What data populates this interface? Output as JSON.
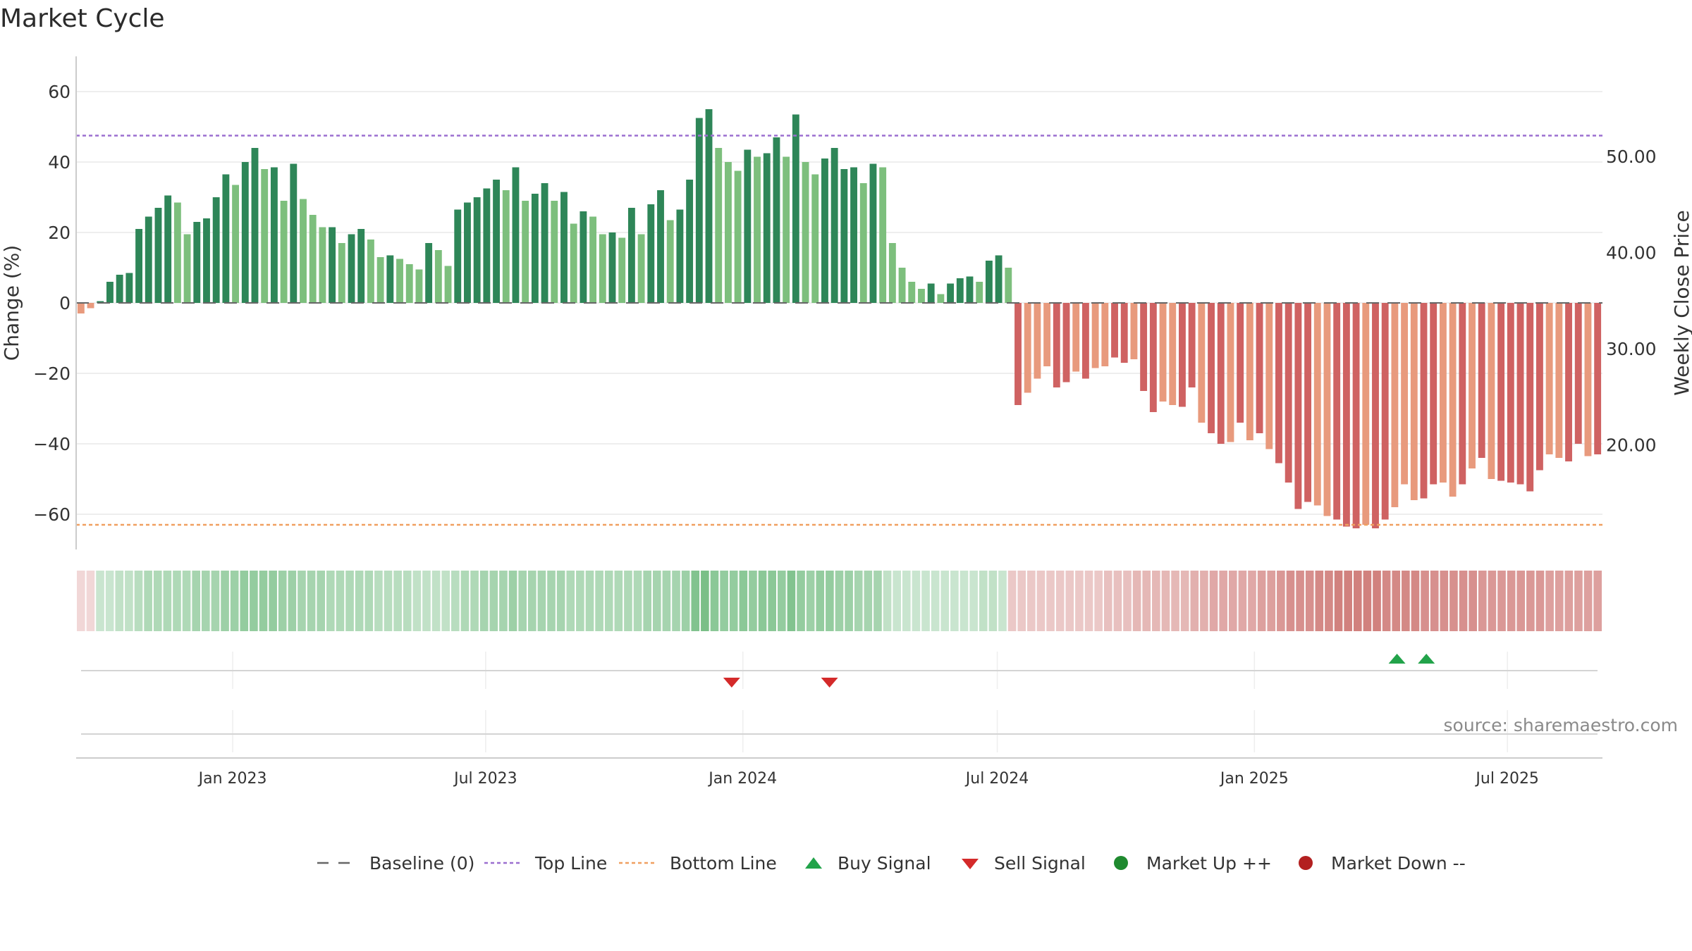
{
  "title": "Market Cycle",
  "source": "source: sharemaestro.com",
  "colors": {
    "up_dark": "#2e8658",
    "up_light": "#7dbf7d",
    "down_dark": "#cf6262",
    "down_light": "#e89a7d",
    "top_line": "#9b6fd0",
    "bottom_line": "#f0a060",
    "buy": "#22a34a",
    "sell": "#d42a2a",
    "market_up": "#1f8a2f",
    "market_down": "#b32020",
    "baseline": "#666666"
  },
  "legend": [
    {
      "key": "baseline",
      "label": "Baseline (0)",
      "symbol": "dash",
      "color": "#666666"
    },
    {
      "key": "top",
      "label": "Top Line",
      "symbol": "dot",
      "color": "#9b6fd0"
    },
    {
      "key": "bottom",
      "label": "Bottom Line",
      "symbol": "dot",
      "color": "#f0a060"
    },
    {
      "key": "buy",
      "label": "Buy Signal",
      "symbol": "triangle-up",
      "color": "#22a34a"
    },
    {
      "key": "sell",
      "label": "Sell Signal",
      "symbol": "triangle-down",
      "color": "#d42a2a"
    },
    {
      "key": "mup",
      "label": "Market Up ++",
      "symbol": "circle",
      "color": "#1f8a2f"
    },
    {
      "key": "mdown",
      "label": "Market Down --",
      "symbol": "circle",
      "color": "#b32020"
    }
  ],
  "chart_data": {
    "type": "bar",
    "ylabel": "Change (%)",
    "y2label": "Weekly Close Price",
    "ylim": [
      -70,
      70
    ],
    "y_ticks": [
      60,
      40,
      20,
      0,
      -20,
      -40,
      -60
    ],
    "y_tick_labels": [
      "60",
      "40",
      "20",
      "0",
      "−20",
      "−40",
      "−60"
    ],
    "y2lim": [
      9.1,
      60.4
    ],
    "y2_ticks": [
      50,
      40,
      30,
      20
    ],
    "y2_tick_labels": [
      "50.00",
      "40.00",
      "30.00",
      "20.00"
    ],
    "top_line": 47.5,
    "bottom_line": -63,
    "x_start": "2022-09-11",
    "x_end": "2025-09-07",
    "x_ticks": [
      "2023-01-01",
      "2023-07-01",
      "2024-01-01",
      "2024-07-01",
      "2025-01-01",
      "2025-07-01"
    ],
    "x_tick_labels": [
      "Jan 2023",
      "Jul 2023",
      "Jan 2024",
      "Jul 2024",
      "Jan 2025",
      "Jul 2025"
    ],
    "values": [
      -3,
      -1.5,
      0.5,
      6,
      8,
      8.5,
      21,
      24.5,
      27,
      30.5,
      28.5,
      19.5,
      23,
      24,
      30,
      36.5,
      33.5,
      40,
      44,
      38,
      38.5,
      29,
      39.5,
      29.5,
      25,
      21.5,
      21.5,
      17,
      19.5,
      21,
      18,
      13,
      13.5,
      12.5,
      11,
      9.5,
      17,
      15,
      10.5,
      26.5,
      28.5,
      30,
      32.5,
      35,
      32,
      38.5,
      29,
      31,
      34,
      29,
      31.5,
      22.5,
      26,
      24.5,
      19.5,
      20,
      18.5,
      27,
      19.5,
      28,
      32,
      23.5,
      26.5,
      35,
      52.5,
      55,
      44,
      40,
      37.5,
      43.5,
      41.5,
      42.5,
      47,
      41.5,
      53.5,
      40,
      36.5,
      41,
      44,
      38,
      38.5,
      34,
      39.5,
      38.5,
      17,
      10,
      6,
      4,
      5.5,
      2.5,
      5.5,
      7,
      7.5,
      6,
      12,
      13.5,
      10,
      -29,
      -25.5,
      -21.5,
      -18,
      -24,
      -22.5,
      -19.5,
      -21.5,
      -18.5,
      -18,
      -15.5,
      -17,
      -16,
      -25,
      -31,
      -28,
      -29,
      -29.5,
      -24,
      -34,
      -37,
      -40,
      -39.5,
      -34,
      -39,
      -37,
      -41.5,
      -45.5,
      -51,
      -58.5,
      -56.5,
      -57.5,
      -60.5,
      -61.5,
      -63.5,
      -64,
      -63,
      -64,
      -61.5,
      -58,
      -51.5,
      -56,
      -55.5,
      -51.5,
      -51,
      -55,
      -51.5,
      -47,
      -44,
      -50,
      -50.5,
      -51,
      -51.5,
      -53.5,
      -47.5,
      -43,
      -44,
      -45,
      -40,
      -43.5,
      -43
    ],
    "shade": [
      "l",
      "l",
      "d",
      "d",
      "d",
      "d",
      "d",
      "d",
      "d",
      "d",
      "l",
      "l",
      "d",
      "d",
      "d",
      "d",
      "l",
      "d",
      "d",
      "l",
      "d",
      "l",
      "d",
      "l",
      "l",
      "l",
      "d",
      "l",
      "d",
      "d",
      "l",
      "l",
      "d",
      "l",
      "l",
      "l",
      "d",
      "l",
      "l",
      "d",
      "d",
      "d",
      "d",
      "d",
      "l",
      "d",
      "l",
      "d",
      "d",
      "l",
      "d",
      "l",
      "d",
      "l",
      "l",
      "d",
      "l",
      "d",
      "l",
      "d",
      "d",
      "l",
      "d",
      "d",
      "d",
      "d",
      "l",
      "l",
      "l",
      "d",
      "l",
      "d",
      "d",
      "l",
      "d",
      "l",
      "l",
      "d",
      "d",
      "d",
      "d",
      "l",
      "d",
      "l",
      "l",
      "l",
      "l",
      "l",
      "d",
      "l",
      "d",
      "d",
      "d",
      "l",
      "d",
      "d",
      "l",
      "d",
      "l",
      "l",
      "l",
      "d",
      "d",
      "l",
      "d",
      "l",
      "l",
      "d",
      "d",
      "l",
      "d",
      "d",
      "l",
      "l",
      "d",
      "d",
      "l",
      "d",
      "d",
      "l",
      "d",
      "l",
      "d",
      "l",
      "d",
      "d",
      "d",
      "d",
      "l",
      "l",
      "d",
      "d",
      "d",
      "l",
      "d",
      "d",
      "l",
      "l",
      "l",
      "d",
      "d",
      "l",
      "l",
      "d",
      "l",
      "d",
      "l",
      "d",
      "d",
      "d",
      "d",
      "d",
      "l",
      "l",
      "d",
      "d",
      "l",
      "d",
      "l"
    ],
    "heat": [
      0.25,
      0.25,
      0.3,
      0.3,
      0.35,
      0.35,
      0.4,
      0.45,
      0.45,
      0.45,
      0.45,
      0.45,
      0.5,
      0.5,
      0.5,
      0.55,
      0.55,
      0.6,
      0.6,
      0.6,
      0.6,
      0.55,
      0.55,
      0.5,
      0.5,
      0.5,
      0.45,
      0.45,
      0.45,
      0.45,
      0.45,
      0.4,
      0.4,
      0.4,
      0.4,
      0.35,
      0.35,
      0.35,
      0.35,
      0.4,
      0.45,
      0.45,
      0.5,
      0.5,
      0.5,
      0.55,
      0.5,
      0.5,
      0.5,
      0.5,
      0.5,
      0.45,
      0.45,
      0.45,
      0.45,
      0.45,
      0.45,
      0.45,
      0.45,
      0.5,
      0.5,
      0.5,
      0.5,
      0.55,
      0.7,
      0.75,
      0.65,
      0.6,
      0.6,
      0.65,
      0.6,
      0.65,
      0.65,
      0.6,
      0.7,
      0.6,
      0.55,
      0.6,
      0.6,
      0.55,
      0.55,
      0.5,
      0.5,
      0.5,
      0.35,
      0.3,
      0.3,
      0.3,
      0.3,
      0.3,
      0.3,
      0.3,
      0.3,
      0.3,
      0.35,
      0.35,
      0.3,
      0.35,
      0.35,
      0.35,
      0.35,
      0.35,
      0.35,
      0.35,
      0.35,
      0.35,
      0.35,
      0.4,
      0.4,
      0.4,
      0.45,
      0.45,
      0.45,
      0.45,
      0.45,
      0.45,
      0.5,
      0.5,
      0.55,
      0.55,
      0.55,
      0.55,
      0.55,
      0.6,
      0.6,
      0.65,
      0.7,
      0.7,
      0.7,
      0.75,
      0.75,
      0.8,
      0.8,
      0.8,
      0.8,
      0.8,
      0.75,
      0.75,
      0.75,
      0.75,
      0.7,
      0.7,
      0.7,
      0.7,
      0.7,
      0.7,
      0.65,
      0.65,
      0.65,
      0.65,
      0.65,
      0.65,
      0.65,
      0.6,
      0.6,
      0.6,
      0.6,
      0.6,
      0.6
    ],
    "buy_signals": [
      "2025-04-13",
      "2025-05-04"
    ],
    "sell_signals": [
      "2023-12-24",
      "2024-03-03"
    ],
    "grid": true
  }
}
